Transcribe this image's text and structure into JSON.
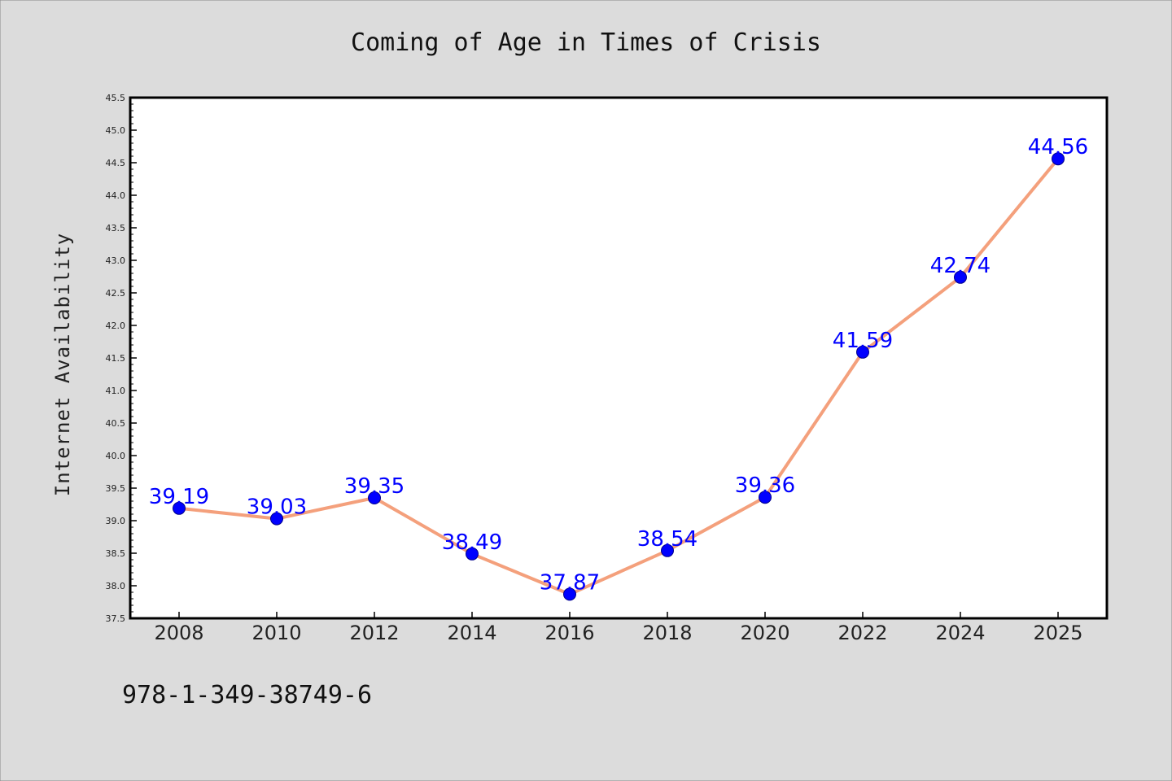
{
  "chart_data": {
    "type": "line",
    "title": "Coming of Age in Times of Crisis",
    "xlabel": "",
    "ylabel": "Internet Availability",
    "categories": [
      "2008",
      "2010",
      "2012",
      "2014",
      "2016",
      "2018",
      "2020",
      "2022",
      "2024",
      "2025"
    ],
    "series": [
      {
        "values": [
          39.19,
          39.03,
          39.35,
          38.49,
          37.87,
          38.54,
          39.36,
          41.59,
          42.74,
          44.56
        ],
        "labels": [
          "39.19",
          "39.03",
          "39.35",
          "38.49",
          "37.87",
          "38.54",
          "39.36",
          "41.59",
          "42.74",
          "44.56"
        ],
        "line_color": "#f4a07c",
        "marker_color": "#0000ff"
      }
    ],
    "ylim": [
      37.5,
      45.5
    ],
    "yticks": [
      "37.5",
      "38.0",
      "38.5",
      "39.0",
      "39.5",
      "40.0",
      "40.5",
      "41.0",
      "41.5",
      "42.0",
      "42.5",
      "43.0",
      "43.5",
      "44.0",
      "44.5",
      "45.0",
      "45.5"
    ],
    "grid": false,
    "legend": "none",
    "footer_text": "978-1-349-38749-6",
    "colors": {
      "background": "#dcdcdc",
      "plot_background": "#ffffff",
      "line": "#f4a07c",
      "marker": "#0000ff",
      "data_label": "#0000ff"
    }
  }
}
